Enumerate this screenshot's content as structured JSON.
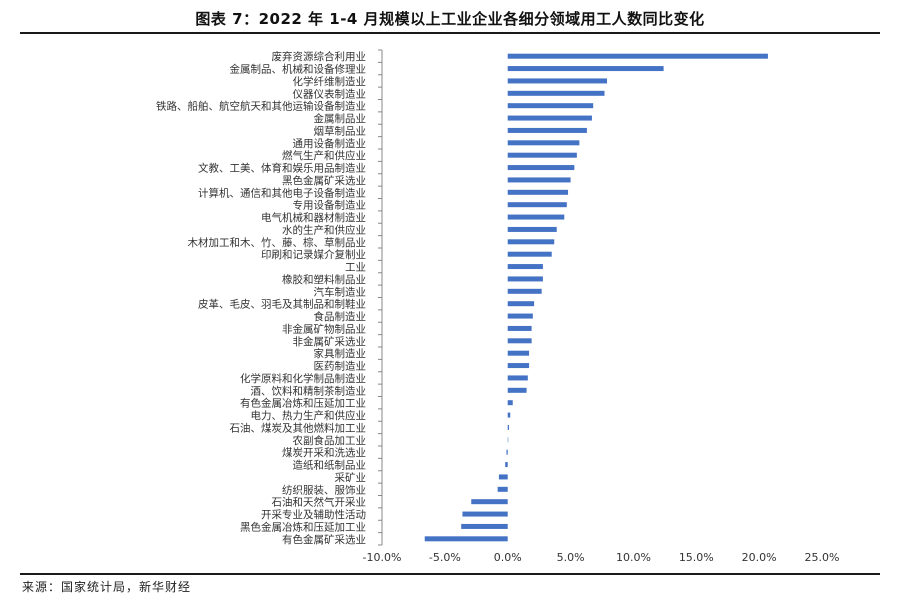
{
  "title": "图表 7：2022 年 1-4 月规模以上工业企业各细分领域用工人数同比变化",
  "source": "来源：国家统计局，新华财经",
  "chart_data": {
    "type": "bar",
    "orientation": "horizontal",
    "categories": [
      "废弃资源综合利用业",
      "金属制品、机械和设备修理业",
      "化学纤维制造业",
      "仪器仪表制造业",
      "铁路、船舶、航空航天和其他运输设备制造业",
      "金属制品业",
      "烟草制品业",
      "通用设备制造业",
      "燃气生产和供应业",
      "文教、工美、体育和娱乐用品制造业",
      "黑色金属矿采选业",
      "计算机、通信和其他电子设备制造业",
      "专用设备制造业",
      "电气机械和器材制造业",
      "水的生产和供应业",
      "木材加工和木、竹、藤、棕、草制品业",
      "印刷和记录媒介复制业",
      "工业",
      "橡胶和塑料制品业",
      "汽车制造业",
      "皮革、毛皮、羽毛及其制品和制鞋业",
      "食品制造业",
      "非金属矿物制品业",
      "非金属矿采选业",
      "家具制造业",
      "医药制造业",
      "化学原料和化学制品制造业",
      "酒、饮料和精制茶制造业",
      "有色金属冶炼和压延加工业",
      "电力、热力生产和供应业",
      "石油、煤炭及其他燃料加工业",
      "农副食品加工业",
      "煤炭开采和洗选业",
      "造纸和纸制品业",
      "采矿业",
      "纺织服装、服饰业",
      "石油和天然气开采业",
      "开采专业及辅助性活动",
      "黑色金属冶炼和压延加工业",
      "有色金属矿采选业"
    ],
    "values": [
      20.7,
      12.4,
      7.9,
      7.7,
      6.8,
      6.7,
      6.3,
      5.7,
      5.5,
      5.3,
      5.0,
      4.8,
      4.7,
      4.5,
      3.9,
      3.7,
      3.5,
      2.8,
      2.8,
      2.7,
      2.1,
      2.0,
      1.9,
      1.9,
      1.7,
      1.7,
      1.6,
      1.5,
      0.4,
      0.2,
      0.1,
      0.0,
      -0.1,
      -0.2,
      -0.7,
      -0.8,
      -2.9,
      -3.6,
      -3.7,
      -6.6
    ],
    "xlim": [
      -10,
      25
    ],
    "xticks": [
      "-10.0%",
      "-5.0%",
      "0.0%",
      "5.0%",
      "10.0%",
      "15.0%",
      "20.0%",
      "25.0%"
    ],
    "xtick_values": [
      -10,
      -5,
      0,
      5,
      10,
      15,
      20,
      25
    ],
    "bar_color": "#4472C4",
    "grid": false,
    "legend": "none"
  }
}
